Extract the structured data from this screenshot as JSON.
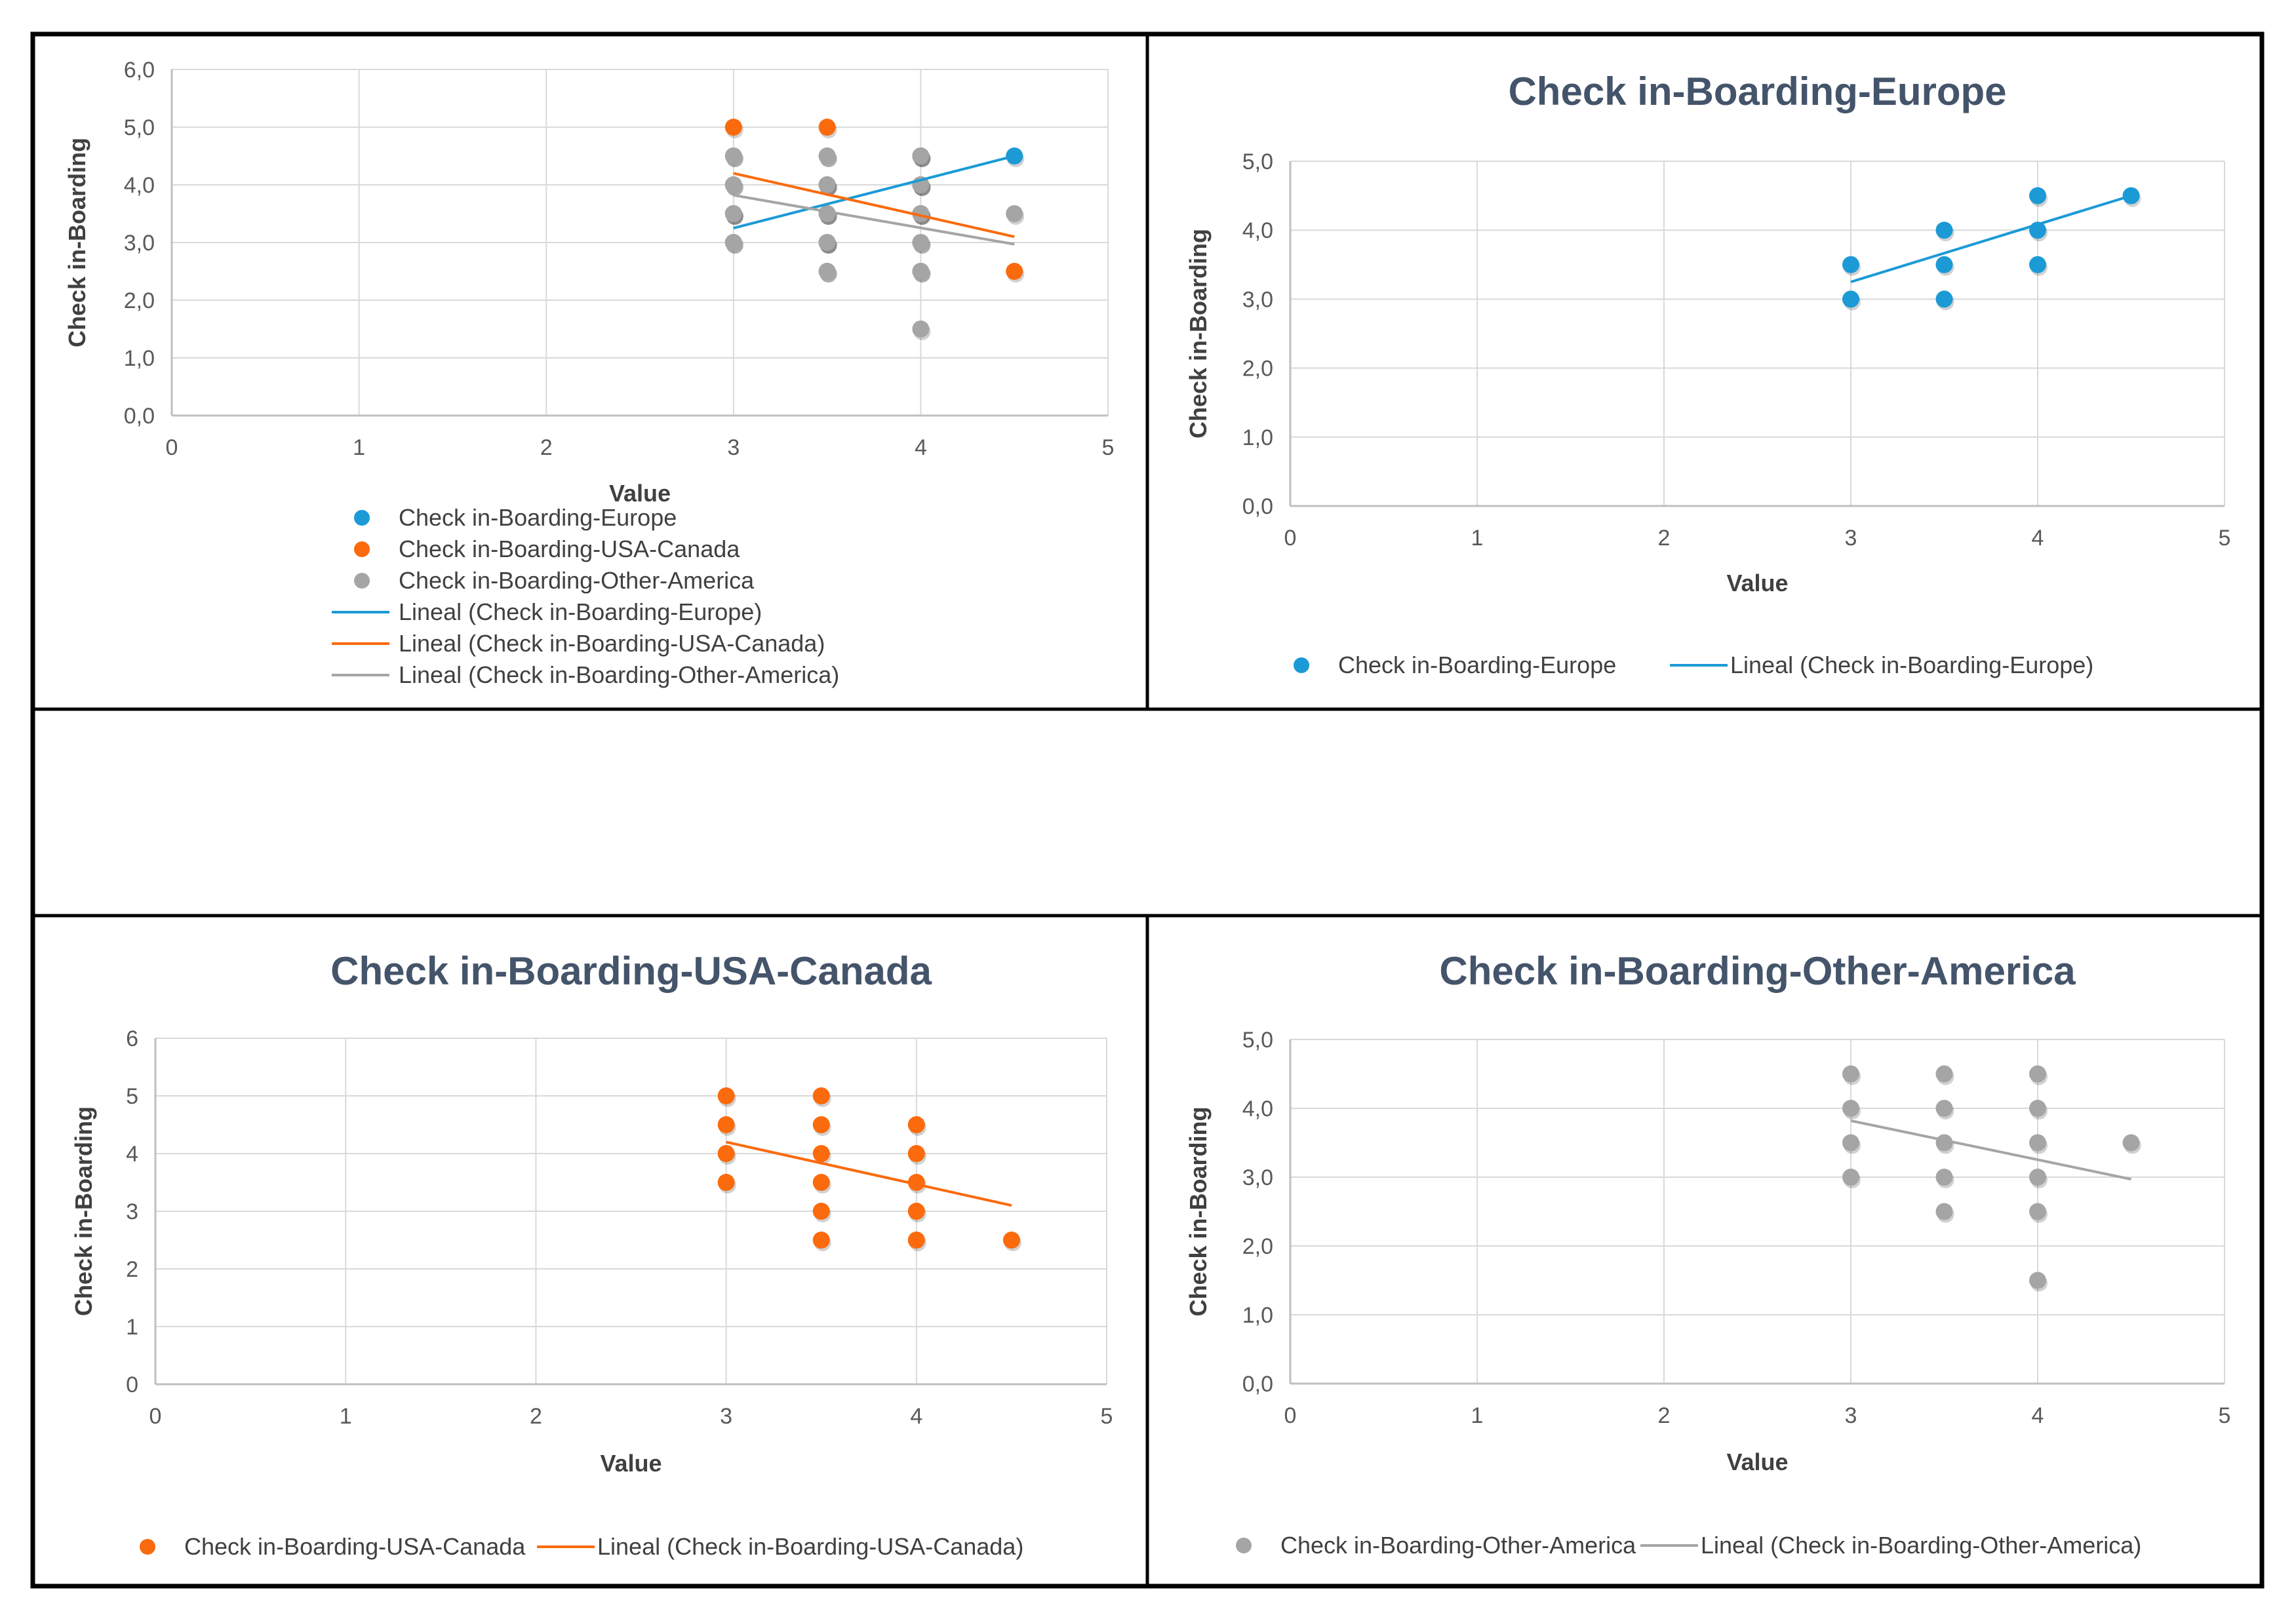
{
  "colors": {
    "europe": "#1b9ad6",
    "usa_canada": "#fb6a0c",
    "other_america": "#a5a5a5",
    "grid": "#d9d9d9",
    "axis": "#bfbfbf",
    "title": "#44546a",
    "text": "#404040"
  },
  "chart_data": [
    {
      "id": "combined",
      "type": "scatter",
      "title": "",
      "xlabel": "Value",
      "ylabel": "Check in-Boarding",
      "xlim": [
        0,
        5
      ],
      "ylim": [
        0,
        6
      ],
      "x_ticks": [
        "0",
        "1",
        "2",
        "3",
        "4",
        "5"
      ],
      "y_ticks": [
        "0,0",
        "1,0",
        "2,0",
        "3,0",
        "4,0",
        "5,0",
        "6,0"
      ],
      "legend_position": "bottom-left",
      "series": [
        {
          "name": "Check in-Boarding-Europe",
          "color_key": "europe",
          "points": [
            [
              3,
              3
            ],
            [
              3,
              3.5
            ],
            [
              3.5,
              3
            ],
            [
              3.5,
              3.5
            ],
            [
              3.5,
              4
            ],
            [
              4,
              3.5
            ],
            [
              4,
              4
            ],
            [
              4,
              4.5
            ],
            [
              4.5,
              4.5
            ]
          ]
        },
        {
          "name": "Check in-Boarding-USA-Canada",
          "color_key": "usa_canada",
          "points": [
            [
              3,
              5
            ],
            [
              3,
              4.5
            ],
            [
              3,
              4
            ],
            [
              3,
              3.5
            ],
            [
              3.5,
              5
            ],
            [
              3.5,
              4.5
            ],
            [
              3.5,
              4
            ],
            [
              3.5,
              3.5
            ],
            [
              3.5,
              3
            ],
            [
              3.5,
              2.5
            ],
            [
              4,
              4.5
            ],
            [
              4,
              4
            ],
            [
              4,
              3.5
            ],
            [
              4,
              3
            ],
            [
              4,
              2.5
            ],
            [
              4.5,
              2.5
            ]
          ]
        },
        {
          "name": "Check in-Boarding-Other-America",
          "color_key": "other_america",
          "points": [
            [
              3,
              4.5
            ],
            [
              3,
              4
            ],
            [
              3,
              3.5
            ],
            [
              3,
              3
            ],
            [
              3.5,
              4.5
            ],
            [
              3.5,
              4
            ],
            [
              3.5,
              3.5
            ],
            [
              3.5,
              3
            ],
            [
              3.5,
              2.5
            ],
            [
              4,
              4.5
            ],
            [
              4,
              4
            ],
            [
              4,
              3.5
            ],
            [
              4,
              3
            ],
            [
              4,
              2.5
            ],
            [
              4,
              1.5
            ],
            [
              4.5,
              3.5
            ]
          ]
        }
      ],
      "trendlines": [
        {
          "name": "Lineal (Check in-Boarding-Europe)",
          "color_key": "europe",
          "x": [
            3,
            4.5
          ],
          "y": [
            3.25,
            4.5
          ]
        },
        {
          "name": "Lineal (Check in-Boarding-USA-Canada)",
          "color_key": "usa_canada",
          "x": [
            3,
            4.5
          ],
          "y": [
            4.2,
            3.1
          ]
        },
        {
          "name": "Lineal (Check in-Boarding-Other-America)",
          "color_key": "other_america",
          "x": [
            3,
            4.5
          ],
          "y": [
            3.82,
            2.97
          ]
        }
      ],
      "legend_order": [
        {
          "kind": "marker",
          "label": "Check in-Boarding-Europe",
          "color_key": "europe"
        },
        {
          "kind": "marker",
          "label": "Check in-Boarding-USA-Canada",
          "color_key": "usa_canada"
        },
        {
          "kind": "marker",
          "label": "Check in-Boarding-Other-America",
          "color_key": "other_america"
        },
        {
          "kind": "line",
          "label": "Lineal (Check in-Boarding-Europe)",
          "color_key": "europe"
        },
        {
          "kind": "line",
          "label": "Lineal (Check in-Boarding-USA-Canada)",
          "color_key": "usa_canada"
        },
        {
          "kind": "line",
          "label": "Lineal (Check in-Boarding-Other-America)",
          "color_key": "other_america"
        }
      ]
    },
    {
      "id": "europe",
      "type": "scatter",
      "title": "Check in-Boarding-Europe",
      "xlabel": "Value",
      "ylabel": "Check in-Boarding",
      "xlim": [
        0,
        5
      ],
      "ylim": [
        0,
        5
      ],
      "x_ticks": [
        "0",
        "1",
        "2",
        "3",
        "4",
        "5"
      ],
      "y_ticks": [
        "0,0",
        "1,0",
        "2,0",
        "3,0",
        "4,0",
        "5,0"
      ],
      "legend_position": "bottom",
      "series": [
        {
          "name": "Check in-Boarding-Europe",
          "color_key": "europe",
          "points": [
            [
              3,
              3
            ],
            [
              3,
              3.5
            ],
            [
              3.5,
              3
            ],
            [
              3.5,
              3.5
            ],
            [
              3.5,
              4
            ],
            [
              4,
              3.5
            ],
            [
              4,
              4
            ],
            [
              4,
              4.5
            ],
            [
              4.5,
              4.5
            ]
          ]
        }
      ],
      "trendlines": [
        {
          "name": "Lineal (Check in-Boarding-Europe)",
          "color_key": "europe",
          "x": [
            3,
            4.5
          ],
          "y": [
            3.25,
            4.5
          ]
        }
      ],
      "legend_order": [
        {
          "kind": "marker",
          "label": "Check in-Boarding-Europe",
          "color_key": "europe"
        },
        {
          "kind": "line",
          "label": "Lineal (Check in-Boarding-Europe)",
          "color_key": "europe"
        }
      ]
    },
    {
      "id": "usa_canada",
      "type": "scatter",
      "title": "Check in-Boarding-USA-Canada",
      "xlabel": "Value",
      "ylabel": "Check in-Boarding",
      "xlim": [
        0,
        5
      ],
      "ylim": [
        0,
        6
      ],
      "x_ticks": [
        "0",
        "1",
        "2",
        "3",
        "4",
        "5"
      ],
      "y_ticks": [
        "0",
        "1",
        "2",
        "3",
        "4",
        "5",
        "6"
      ],
      "legend_position": "bottom",
      "series": [
        {
          "name": "Check in-Boarding-USA-Canada",
          "color_key": "usa_canada",
          "points": [
            [
              3,
              5
            ],
            [
              3,
              4.5
            ],
            [
              3,
              4
            ],
            [
              3,
              3.5
            ],
            [
              3.5,
              5
            ],
            [
              3.5,
              4.5
            ],
            [
              3.5,
              4
            ],
            [
              3.5,
              3.5
            ],
            [
              3.5,
              3
            ],
            [
              3.5,
              2.5
            ],
            [
              4,
              4.5
            ],
            [
              4,
              4
            ],
            [
              4,
              3.5
            ],
            [
              4,
              3
            ],
            [
              4,
              2.5
            ],
            [
              4.5,
              2.5
            ]
          ]
        }
      ],
      "trendlines": [
        {
          "name": "Lineal (Check in-Boarding-USA-Canada)",
          "color_key": "usa_canada",
          "x": [
            3,
            4.5
          ],
          "y": [
            4.2,
            3.1
          ]
        }
      ],
      "legend_order": [
        {
          "kind": "marker",
          "label": "Check in-Boarding-USA-Canada",
          "color_key": "usa_canada"
        },
        {
          "kind": "line",
          "label": "Lineal (Check in-Boarding-USA-Canada)",
          "color_key": "usa_canada"
        }
      ]
    },
    {
      "id": "other_america",
      "type": "scatter",
      "title": "Check in-Boarding-Other-America",
      "xlabel": "Value",
      "ylabel": "Check in-Boarding",
      "xlim": [
        0,
        5
      ],
      "ylim": [
        0,
        5
      ],
      "x_ticks": [
        "0",
        "1",
        "2",
        "3",
        "4",
        "5"
      ],
      "y_ticks": [
        "0,0",
        "1,0",
        "2,0",
        "3,0",
        "4,0",
        "5,0"
      ],
      "legend_position": "bottom",
      "series": [
        {
          "name": "Check in-Boarding-Other-America",
          "color_key": "other_america",
          "points": [
            [
              3,
              4.5
            ],
            [
              3,
              4
            ],
            [
              3,
              3.5
            ],
            [
              3,
              3
            ],
            [
              3.5,
              4.5
            ],
            [
              3.5,
              4
            ],
            [
              3.5,
              3.5
            ],
            [
              3.5,
              3
            ],
            [
              3.5,
              2.5
            ],
            [
              4,
              4.5
            ],
            [
              4,
              4
            ],
            [
              4,
              3.5
            ],
            [
              4,
              3
            ],
            [
              4,
              2.5
            ],
            [
              4,
              1.5
            ],
            [
              4.5,
              3.5
            ]
          ]
        }
      ],
      "trendlines": [
        {
          "name": "Lineal (Check in-Boarding-Other-America)",
          "color_key": "other_america",
          "x": [
            3,
            4.5
          ],
          "y": [
            3.82,
            2.97
          ]
        }
      ],
      "legend_order": [
        {
          "kind": "marker",
          "label": "Check in-Boarding-Other-America",
          "color_key": "other_america"
        },
        {
          "kind": "line",
          "label": "Lineal (Check in-Boarding-Other-America)",
          "color_key": "other_america"
        }
      ]
    }
  ]
}
